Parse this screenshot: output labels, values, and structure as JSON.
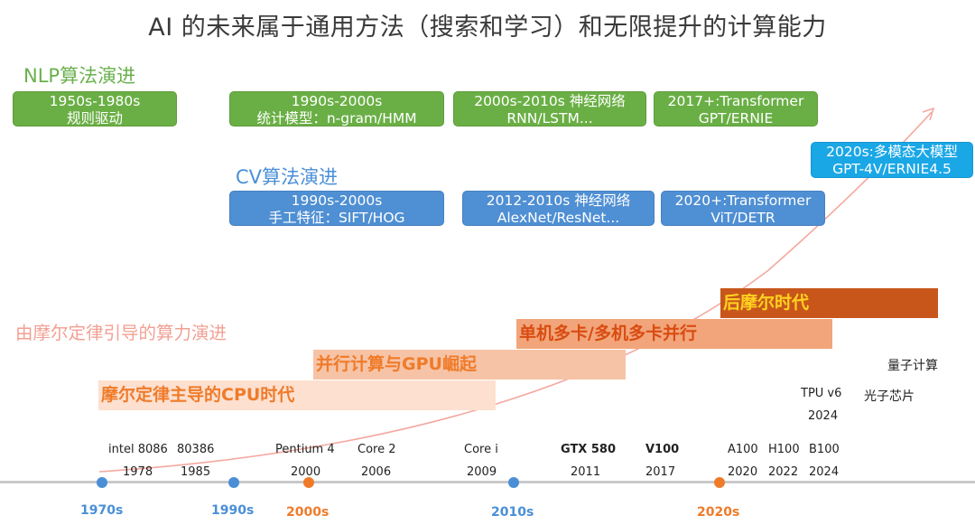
{
  "title": "AI 的未来属于通用方法（搜索和学习）和无限提升的计算能力",
  "nlp": {
    "label": "NLP算法演进",
    "boxes": [
      {
        "line1": "1950s-1980s",
        "line2": "规则驱动"
      },
      {
        "line1": "1990s-2000s",
        "line2": "统计模型：n-gram/HMM"
      },
      {
        "line1": "2000s-2010s 神经网络",
        "line2": "RNN/LSTM..."
      },
      {
        "line1": "2017+:Transformer",
        "line2": "GPT/ERNIE"
      }
    ]
  },
  "cv": {
    "label": "CV算法演进",
    "boxes": [
      {
        "line1": "1990s-2000s",
        "line2": "手工特征：SIFT/HOG"
      },
      {
        "line1": "2012-2010s 神经网络",
        "line2": "AlexNet/ResNet..."
      },
      {
        "line1": "2020+:Transformer",
        "line2": "ViT/DETR"
      }
    ]
  },
  "multimodal": {
    "line1": "2020s:多模态大模型",
    "line2": "GPT-4V/ERNIE4.5"
  },
  "moore_label": "由摩尔定律引导的算力演进",
  "bands": [
    {
      "label": "摩尔定律主导的CPU时代",
      "color": "#fde0d0",
      "text_color": "#ef7b2a"
    },
    {
      "label": "并行计算与GPU崛起",
      "color": "#f7c3a6",
      "text_color": "#ef7b2a"
    },
    {
      "label": "单机多卡/多机多卡并行",
      "color": "#f2a57a",
      "text_color": "#d94c12"
    },
    {
      "label": "后摩尔时代",
      "color": "#c8561b",
      "text_color": "#ffd21f"
    }
  ],
  "future": {
    "quantum": "量子计算",
    "photonic": "光子芯片",
    "tpu_name": "TPU v6",
    "tpu_year": "2024"
  },
  "milestones": [
    {
      "name": "intel 8086",
      "year": "1978",
      "bold": false
    },
    {
      "name": "80386",
      "year": "1985",
      "bold": false
    },
    {
      "name": "Pentium 4",
      "year": "2000",
      "bold": false
    },
    {
      "name": "Core 2",
      "year": "2006",
      "bold": false
    },
    {
      "name": "Core i",
      "year": "2009",
      "bold": false
    },
    {
      "name": "GTX 580",
      "year": "2011",
      "bold": true
    },
    {
      "name": "V100",
      "year": "2017",
      "bold": true
    },
    {
      "name": "A100",
      "year": "2020",
      "bold": false
    },
    {
      "name": "H100",
      "year": "2022",
      "bold": false
    },
    {
      "name": "B100",
      "year": "2024",
      "bold": false
    }
  ],
  "eras": [
    {
      "label": "1970s",
      "color": "#4a8fd6"
    },
    {
      "label": "1990s",
      "color": "#4a8fd6"
    },
    {
      "label": "2000s",
      "color": "#ef7b2a"
    },
    {
      "label": "2010s",
      "color": "#4a8fd6"
    },
    {
      "label": "2020s",
      "color": "#ef7b2a"
    }
  ]
}
